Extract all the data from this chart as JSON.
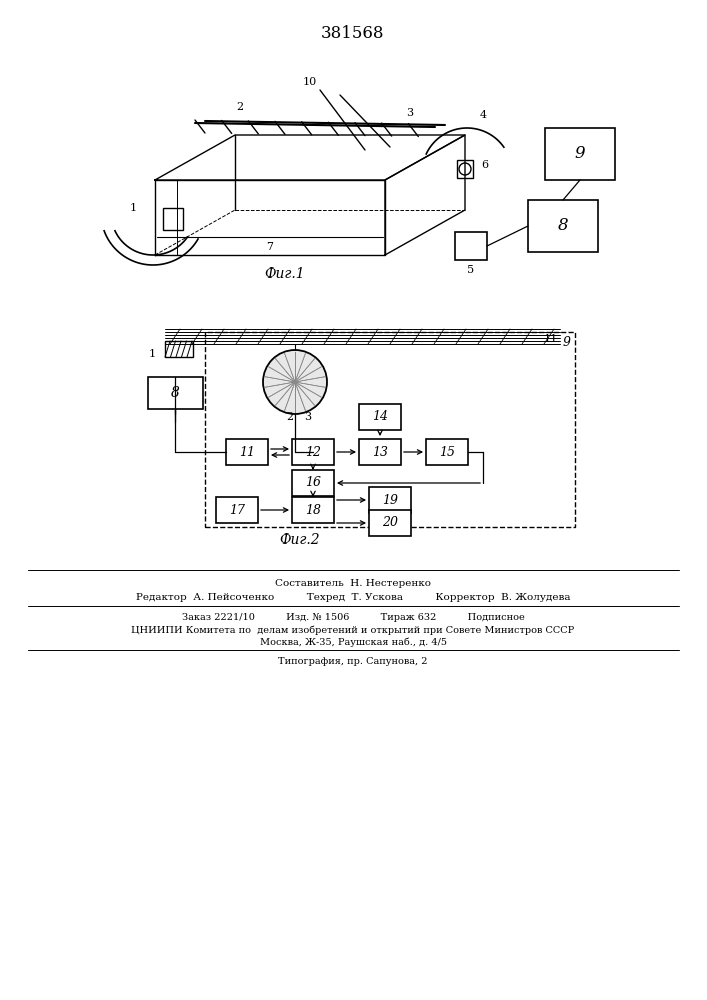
{
  "title": "381568",
  "fig1_caption": "Фиг.1",
  "fig2_caption": "Фиг.2",
  "bg_color": "#ffffff",
  "line_color": "#000000",
  "footer_lines": [
    "Составитель  Н. Нестеренко",
    "Редактор  А. Пейсоченко          Техред  Т. Ускова          Корректор  В. Жолудева",
    "Заказ 2221/10          Изд. № 1506          Тираж 632          Подписное",
    "ЦНИИПИ Комитета по  делам изобретений и открытий при Совете Министров СССР",
    "Москва, Ж-35, Раушская наб., д. 4/5",
    "Типография, пр. Сапунова, 2"
  ]
}
